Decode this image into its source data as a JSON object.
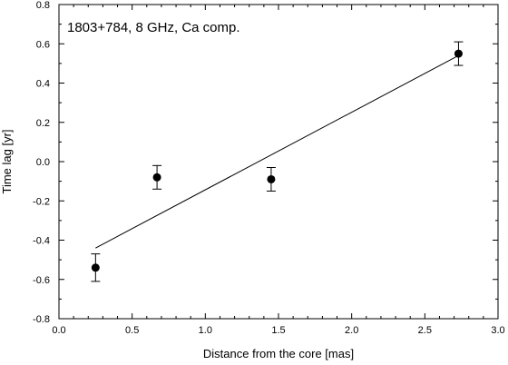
{
  "chart_data": {
    "type": "scatter",
    "annotation": "1803+784, 8 GHz, Ca comp.",
    "xlabel": "Distance from the core [mas]",
    "ylabel": "Time lag [yr]",
    "xlim": [
      0.0,
      3.0
    ],
    "ylim": [
      -0.8,
      0.8
    ],
    "x_ticks": [
      "0.0",
      "0.5",
      "1.0",
      "1.5",
      "2.0",
      "2.5",
      "3.0"
    ],
    "y_ticks": [
      "-0.8",
      "-0.6",
      "-0.4",
      "-0.2",
      "0.0",
      "0.2",
      "0.4",
      "0.6",
      "0.8"
    ],
    "grid": false,
    "series": [
      {
        "points": [
          {
            "x": 0.25,
            "y": -0.54,
            "yerr": 0.07
          },
          {
            "x": 0.67,
            "y": -0.08,
            "yerr": 0.06
          },
          {
            "x": 1.45,
            "y": -0.09,
            "yerr": 0.06
          },
          {
            "x": 2.73,
            "y": 0.55,
            "yerr": 0.06
          }
        ]
      }
    ],
    "fit_line": {
      "x": [
        0.25,
        2.73
      ],
      "y": [
        -0.44,
        0.54
      ]
    }
  }
}
